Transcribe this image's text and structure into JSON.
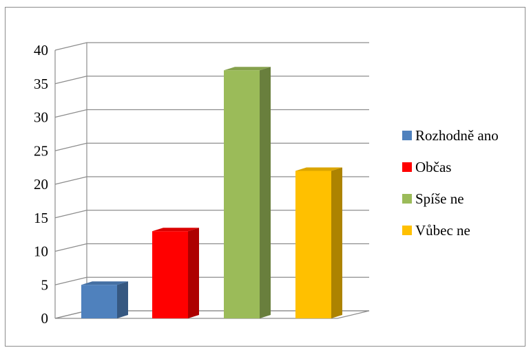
{
  "chart_data": {
    "type": "bar",
    "style": "3d-column",
    "categories": [
      "Rozhodně ano",
      "Občas",
      "Spíše ne",
      "Vůbec ne"
    ],
    "values": [
      5,
      13,
      37,
      22
    ],
    "colors": [
      "#4F81BD",
      "#FF0000",
      "#9BBB59",
      "#FFC000"
    ],
    "ylim": [
      0,
      40
    ],
    "yticks": [
      "0",
      "5",
      "10",
      "15",
      "20",
      "25",
      "30",
      "35",
      "40"
    ],
    "grid": true,
    "legend": "right",
    "xlabel": "",
    "ylabel": "",
    "title": ""
  }
}
